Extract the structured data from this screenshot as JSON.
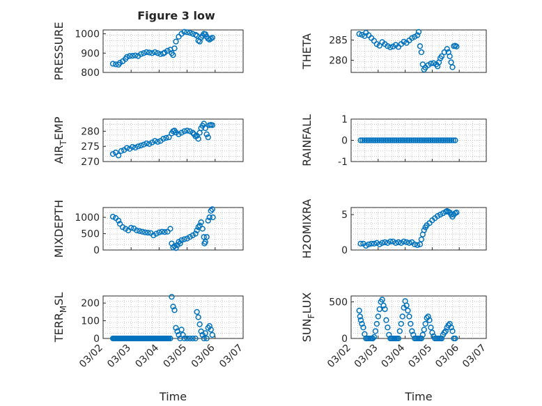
{
  "title": "Figure 3 low",
  "chart_data": [
    {
      "type": "scatter",
      "ylabel": "PRESSURE",
      "ylim": [
        800,
        1020
      ],
      "yticks": [
        800,
        900,
        1000
      ],
      "xlim": [
        0,
        5
      ],
      "grid": true,
      "marker": "circle",
      "color": "#0072BD",
      "points": [
        [
          0.35,
          845
        ],
        [
          0.45,
          842
        ],
        [
          0.55,
          840
        ],
        [
          0.6,
          850
        ],
        [
          0.7,
          858
        ],
        [
          0.8,
          870
        ],
        [
          0.85,
          880
        ],
        [
          0.95,
          885
        ],
        [
          1.05,
          886
        ],
        [
          1.15,
          888
        ],
        [
          1.25,
          885
        ],
        [
          1.35,
          895
        ],
        [
          1.45,
          900
        ],
        [
          1.55,
          905
        ],
        [
          1.65,
          903
        ],
        [
          1.75,
          900
        ],
        [
          1.85,
          905
        ],
        [
          1.95,
          900
        ],
        [
          2.05,
          895
        ],
        [
          2.15,
          898
        ],
        [
          2.2,
          903
        ],
        [
          2.3,
          912
        ],
        [
          2.4,
          918
        ],
        [
          2.45,
          900
        ],
        [
          2.5,
          890
        ],
        [
          2.55,
          925
        ],
        [
          2.6,
          960
        ],
        [
          2.7,
          985
        ],
        [
          2.8,
          1000
        ],
        [
          2.9,
          1010
        ],
        [
          3.0,
          1008
        ],
        [
          3.1,
          1005
        ],
        [
          3.2,
          1000
        ],
        [
          3.3,
          995
        ],
        [
          3.35,
          990
        ],
        [
          3.4,
          965
        ],
        [
          3.45,
          960
        ],
        [
          3.5,
          980
        ],
        [
          3.55,
          990
        ],
        [
          3.6,
          1000
        ],
        [
          3.65,
          998
        ],
        [
          3.7,
          985
        ],
        [
          3.75,
          975
        ],
        [
          3.8,
          970
        ],
        [
          3.85,
          975
        ],
        [
          3.9,
          980
        ]
      ]
    },
    {
      "type": "scatter",
      "ylabel": "THETA",
      "ylim": [
        277,
        287.5
      ],
      "yticks": [
        280,
        285
      ],
      "xlim": [
        0,
        5
      ],
      "grid": true,
      "marker": "circle",
      "color": "#0072BD",
      "points": [
        [
          0.3,
          286.5
        ],
        [
          0.4,
          286.3
        ],
        [
          0.5,
          286
        ],
        [
          0.55,
          286.8
        ],
        [
          0.65,
          286.2
        ],
        [
          0.75,
          285.5
        ],
        [
          0.85,
          284.8
        ],
        [
          0.95,
          284
        ],
        [
          1.05,
          283.6
        ],
        [
          1.15,
          284.5
        ],
        [
          1.25,
          284
        ],
        [
          1.35,
          283.5
        ],
        [
          1.45,
          283.2
        ],
        [
          1.55,
          283.4
        ],
        [
          1.65,
          283.8
        ],
        [
          1.75,
          283.3
        ],
        [
          1.85,
          284
        ],
        [
          1.95,
          284.6
        ],
        [
          2.05,
          284.3
        ],
        [
          2.15,
          284.9
        ],
        [
          2.25,
          285.5
        ],
        [
          2.35,
          285.8
        ],
        [
          2.45,
          286.2
        ],
        [
          2.5,
          287
        ],
        [
          2.55,
          283.5
        ],
        [
          2.6,
          282
        ],
        [
          2.65,
          279
        ],
        [
          2.7,
          277.7
        ],
        [
          2.75,
          278.2
        ],
        [
          2.85,
          278.8
        ],
        [
          2.95,
          279.2
        ],
        [
          3.05,
          279.3
        ],
        [
          3.15,
          279
        ],
        [
          3.2,
          278.5
        ],
        [
          3.25,
          279.5
        ],
        [
          3.3,
          280.5
        ],
        [
          3.35,
          281
        ],
        [
          3.45,
          282
        ],
        [
          3.55,
          282.8
        ],
        [
          3.6,
          282
        ],
        [
          3.65,
          281
        ],
        [
          3.7,
          279.5
        ],
        [
          3.75,
          278.3
        ],
        [
          3.8,
          283.5
        ],
        [
          3.85,
          283.6
        ],
        [
          3.9,
          283.4
        ]
      ]
    },
    {
      "type": "scatter",
      "ylabel": "AIR_TEMP",
      "ylim": [
        270,
        284
      ],
      "yticks": [
        270,
        275,
        280
      ],
      "xlim": [
        0,
        5
      ],
      "grid": true,
      "marker": "circle",
      "color": "#0072BD",
      "points": [
        [
          0.35,
          272.5
        ],
        [
          0.45,
          273
        ],
        [
          0.55,
          272
        ],
        [
          0.65,
          273.5
        ],
        [
          0.75,
          273.8
        ],
        [
          0.85,
          274.5
        ],
        [
          0.95,
          274.2
        ],
        [
          1.05,
          274.8
        ],
        [
          1.15,
          274.6
        ],
        [
          1.25,
          275
        ],
        [
          1.35,
          275.3
        ],
        [
          1.45,
          275.6
        ],
        [
          1.55,
          276
        ],
        [
          1.65,
          275.8
        ],
        [
          1.75,
          276.3
        ],
        [
          1.85,
          276.8
        ],
        [
          1.95,
          276.5
        ],
        [
          2.05,
          276.8
        ],
        [
          2.15,
          277.5
        ],
        [
          2.25,
          277.8
        ],
        [
          2.35,
          278
        ],
        [
          2.45,
          279.3
        ],
        [
          2.5,
          280
        ],
        [
          2.55,
          280.2
        ],
        [
          2.6,
          279.6
        ],
        [
          2.7,
          279
        ],
        [
          2.8,
          279.5
        ],
        [
          2.9,
          280
        ],
        [
          3.0,
          280.2
        ],
        [
          3.1,
          280
        ],
        [
          3.2,
          279.5
        ],
        [
          3.25,
          279
        ],
        [
          3.3,
          278.3
        ],
        [
          3.35,
          278.5
        ],
        [
          3.4,
          277.5
        ],
        [
          3.45,
          279.5
        ],
        [
          3.5,
          281
        ],
        [
          3.55,
          281.8
        ],
        [
          3.6,
          282.5
        ],
        [
          3.65,
          281
        ],
        [
          3.7,
          279
        ],
        [
          3.75,
          278
        ],
        [
          3.8,
          282
        ],
        [
          3.85,
          282.1
        ],
        [
          3.9,
          282
        ]
      ]
    },
    {
      "type": "scatter",
      "ylabel": "RAINFALL",
      "ylim": [
        -1,
        1
      ],
      "yticks": [
        -1,
        0,
        1
      ],
      "xlim": [
        0,
        5
      ],
      "grid": true,
      "marker": "circle",
      "color": "#0072BD",
      "constant_series": {
        "x_from": 0.35,
        "x_to": 3.9,
        "step": 0.07,
        "y": 0
      }
    },
    {
      "type": "scatter",
      "ylabel": "MIXDEPTH",
      "ylim": [
        0,
        1300
      ],
      "yticks": [
        0,
        500,
        1000
      ],
      "xlim": [
        0,
        5
      ],
      "grid": true,
      "marker": "circle",
      "color": "#0072BD",
      "points": [
        [
          0.35,
          1020
        ],
        [
          0.45,
          980
        ],
        [
          0.55,
          900
        ],
        [
          0.6,
          800
        ],
        [
          0.7,
          700
        ],
        [
          0.8,
          650
        ],
        [
          0.9,
          600
        ],
        [
          1.0,
          680
        ],
        [
          1.1,
          660
        ],
        [
          1.2,
          600
        ],
        [
          1.3,
          580
        ],
        [
          1.4,
          560
        ],
        [
          1.5,
          540
        ],
        [
          1.6,
          530
        ],
        [
          1.7,
          520
        ],
        [
          1.8,
          450
        ],
        [
          1.9,
          500
        ],
        [
          2.0,
          540
        ],
        [
          2.1,
          560
        ],
        [
          2.2,
          550
        ],
        [
          2.3,
          560
        ],
        [
          2.4,
          650
        ],
        [
          2.45,
          200
        ],
        [
          2.5,
          80
        ],
        [
          2.55,
          120
        ],
        [
          2.6,
          60
        ],
        [
          2.65,
          150
        ],
        [
          2.7,
          250
        ],
        [
          2.75,
          200
        ],
        [
          2.8,
          300
        ],
        [
          2.9,
          330
        ],
        [
          3.0,
          350
        ],
        [
          3.1,
          400
        ],
        [
          3.2,
          450
        ],
        [
          3.3,
          500
        ],
        [
          3.35,
          600
        ],
        [
          3.4,
          700
        ],
        [
          3.45,
          750
        ],
        [
          3.5,
          850
        ],
        [
          3.55,
          650
        ],
        [
          3.6,
          400
        ],
        [
          3.62,
          200
        ],
        [
          3.65,
          250
        ],
        [
          3.7,
          400
        ],
        [
          3.75,
          900
        ],
        [
          3.8,
          1000
        ],
        [
          3.85,
          1200
        ],
        [
          3.9,
          1250
        ],
        [
          3.92,
          1000
        ]
      ]
    },
    {
      "type": "scatter",
      "ylabel": "H2OMIXRA",
      "ylim": [
        0,
        6
      ],
      "yticks": [
        0,
        5
      ],
      "xlim": [
        0,
        5
      ],
      "grid": true,
      "marker": "circle",
      "color": "#0072BD",
      "points": [
        [
          0.35,
          0.9
        ],
        [
          0.45,
          0.9
        ],
        [
          0.55,
          0.6
        ],
        [
          0.65,
          0.8
        ],
        [
          0.75,
          0.9
        ],
        [
          0.85,
          0.9
        ],
        [
          0.95,
          1.0
        ],
        [
          1.05,
          0.8
        ],
        [
          1.15,
          1.0
        ],
        [
          1.25,
          1.1
        ],
        [
          1.35,
          1.0
        ],
        [
          1.45,
          1.2
        ],
        [
          1.55,
          1.2
        ],
        [
          1.65,
          1.0
        ],
        [
          1.75,
          1.1
        ],
        [
          1.85,
          1.0
        ],
        [
          1.95,
          1.2
        ],
        [
          2.05,
          1.1
        ],
        [
          2.15,
          1.0
        ],
        [
          2.25,
          1.1
        ],
        [
          2.35,
          0.8
        ],
        [
          2.45,
          0.7
        ],
        [
          2.55,
          0.8
        ],
        [
          2.6,
          1.5
        ],
        [
          2.65,
          2.2
        ],
        [
          2.7,
          2.8
        ],
        [
          2.75,
          3.2
        ],
        [
          2.8,
          3.5
        ],
        [
          2.9,
          3.8
        ],
        [
          3.0,
          4.2
        ],
        [
          3.1,
          4.5
        ],
        [
          3.2,
          4.8
        ],
        [
          3.3,
          5.0
        ],
        [
          3.4,
          5.2
        ],
        [
          3.5,
          5.4
        ],
        [
          3.55,
          5.5
        ],
        [
          3.6,
          5.4
        ],
        [
          3.65,
          5.3
        ],
        [
          3.7,
          5.0
        ],
        [
          3.75,
          4.7
        ],
        [
          3.8,
          5.0
        ],
        [
          3.85,
          5.2
        ],
        [
          3.9,
          5.3
        ]
      ]
    },
    {
      "type": "scatter",
      "ylabel": "TERR_MSL",
      "ylim": [
        0,
        240
      ],
      "yticks": [
        0,
        100,
        200
      ],
      "xlim": [
        0,
        5
      ],
      "grid": true,
      "marker": "circle",
      "color": "#0072BD",
      "xtick_labels": [
        "03/02",
        "03/03",
        "03/04",
        "03/05",
        "03/06",
        "03/07"
      ],
      "xlabel": "Time",
      "constant_series": {
        "x_from": 0.35,
        "x_to": 2.35,
        "step": 0.035,
        "y": 0
      },
      "points": [
        [
          2.4,
          0
        ],
        [
          2.45,
          235
        ],
        [
          2.5,
          180
        ],
        [
          2.55,
          160
        ],
        [
          2.6,
          60
        ],
        [
          2.65,
          40
        ],
        [
          2.7,
          20
        ],
        [
          2.75,
          0
        ],
        [
          2.8,
          50
        ],
        [
          2.85,
          20
        ],
        [
          2.9,
          0
        ],
        [
          3.0,
          0
        ],
        [
          3.1,
          0
        ],
        [
          3.2,
          0
        ],
        [
          3.3,
          0
        ],
        [
          3.35,
          150
        ],
        [
          3.4,
          120
        ],
        [
          3.45,
          80
        ],
        [
          3.5,
          40
        ],
        [
          3.55,
          20
        ],
        [
          3.6,
          0
        ],
        [
          3.65,
          30
        ],
        [
          3.7,
          0
        ],
        [
          3.75,
          60
        ],
        [
          3.8,
          70
        ],
        [
          3.85,
          50
        ],
        [
          3.9,
          20
        ]
      ]
    },
    {
      "type": "scatter",
      "ylabel": "SUN_FLUX",
      "ylim": [
        0,
        580
      ],
      "yticks": [
        0,
        500
      ],
      "xlim": [
        0,
        5
      ],
      "grid": true,
      "marker": "circle",
      "color": "#0072BD",
      "xtick_labels": [
        "03/02",
        "03/03",
        "03/04",
        "03/05",
        "03/06",
        "03/07"
      ],
      "xlabel": "Time",
      "points": [
        [
          0.3,
          380
        ],
        [
          0.33,
          300
        ],
        [
          0.36,
          250
        ],
        [
          0.4,
          200
        ],
        [
          0.45,
          150
        ],
        [
          0.5,
          60
        ],
        [
          0.55,
          0
        ],
        [
          0.6,
          0
        ],
        [
          0.65,
          0
        ],
        [
          0.7,
          0
        ],
        [
          0.75,
          0
        ],
        [
          0.8,
          0
        ],
        [
          0.85,
          20
        ],
        [
          0.9,
          100
        ],
        [
          0.95,
          200
        ],
        [
          1.0,
          300
        ],
        [
          1.05,
          400
        ],
        [
          1.1,
          500
        ],
        [
          1.15,
          530
        ],
        [
          1.2,
          450
        ],
        [
          1.25,
          400
        ],
        [
          1.3,
          250
        ],
        [
          1.35,
          150
        ],
        [
          1.4,
          50
        ],
        [
          1.45,
          0
        ],
        [
          1.5,
          0
        ],
        [
          1.55,
          0
        ],
        [
          1.6,
          0
        ],
        [
          1.65,
          0
        ],
        [
          1.7,
          0
        ],
        [
          1.75,
          0
        ],
        [
          1.8,
          100
        ],
        [
          1.85,
          200
        ],
        [
          1.9,
          300
        ],
        [
          1.95,
          420
        ],
        [
          2.0,
          510
        ],
        [
          2.05,
          450
        ],
        [
          2.1,
          380
        ],
        [
          2.15,
          300
        ],
        [
          2.2,
          200
        ],
        [
          2.25,
          100
        ],
        [
          2.3,
          50
        ],
        [
          2.35,
          0
        ],
        [
          2.4,
          0
        ],
        [
          2.45,
          0
        ],
        [
          2.5,
          0
        ],
        [
          2.55,
          0
        ],
        [
          2.6,
          0
        ],
        [
          2.65,
          50
        ],
        [
          2.7,
          120
        ],
        [
          2.75,
          200
        ],
        [
          2.8,
          280
        ],
        [
          2.85,
          300
        ],
        [
          2.9,
          250
        ],
        [
          2.95,
          150
        ],
        [
          3.0,
          80
        ],
        [
          3.05,
          30
        ],
        [
          3.1,
          0
        ],
        [
          3.15,
          0
        ],
        [
          3.2,
          0
        ],
        [
          3.25,
          0
        ],
        [
          3.3,
          0
        ],
        [
          3.35,
          0
        ],
        [
          3.4,
          50
        ],
        [
          3.45,
          80
        ],
        [
          3.5,
          100
        ],
        [
          3.55,
          150
        ],
        [
          3.6,
          180
        ],
        [
          3.65,
          200
        ],
        [
          3.7,
          150
        ],
        [
          3.75,
          100
        ],
        [
          3.8,
          0
        ],
        [
          3.85,
          0
        ]
      ]
    }
  ]
}
